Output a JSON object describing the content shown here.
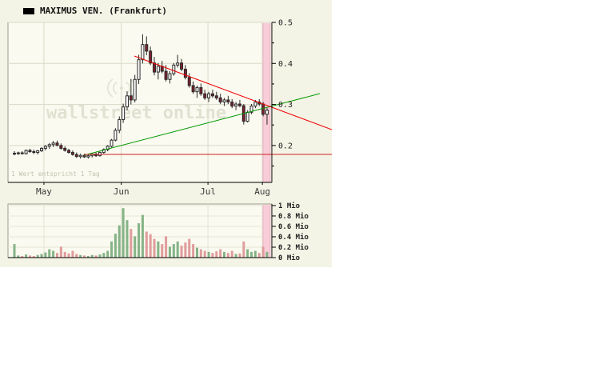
{
  "header": {
    "title": "MAXIMUS VEN. (Frankfurt)"
  },
  "watermark": {
    "text": "wallstreet online"
  },
  "annotation": "1 Wert entspricht 1 Tag",
  "chart_data": [
    {
      "type": "candlestick",
      "title": "MAXIMUS VEN. (Frankfurt)",
      "ylim": [
        0.11,
        0.5
      ],
      "y_ticks": [
        0.2,
        0.3,
        0.4,
        0.5
      ],
      "minor_ticks": [
        0.15,
        0.25,
        0.35,
        0.45
      ],
      "months": [
        {
          "label": "May",
          "i": 7.6
        },
        {
          "label": "Jun",
          "i": 27.5
        },
        {
          "label": "Jul",
          "i": 49.8
        },
        {
          "label": "Aug",
          "i": 63.8
        }
      ],
      "colors": {
        "up_fill": "#ffffff",
        "down_fill": "#7d1f2d",
        "stroke": "#2a2a2a",
        "wick": "#2a2a2a"
      },
      "highlight_band": {
        "x": 329,
        "width": 9,
        "color": "#f8ccd8",
        "edge": "#eab6c4"
      },
      "trendlines": [
        {
          "name": "green-uptrend-line",
          "color": "#009900",
          "from": [
            105,
            194
          ],
          "to": [
            400,
            117
          ]
        },
        {
          "name": "red-downtrend-line",
          "color": "#ee0000",
          "from": [
            168,
            70
          ],
          "to": [
            415,
            162
          ]
        },
        {
          "name": "red-support-line",
          "color": "#cc2222",
          "from": [
            105,
            193
          ],
          "to": [
            415,
            193
          ]
        }
      ],
      "candles": [
        [
          0.18,
          0.186,
          0.176,
          0.181
        ],
        [
          0.181,
          0.185,
          0.177,
          0.182
        ],
        [
          0.182,
          0.186,
          0.178,
          0.18
        ],
        [
          0.18,
          0.19,
          0.178,
          0.188
        ],
        [
          0.188,
          0.192,
          0.182,
          0.185
        ],
        [
          0.185,
          0.19,
          0.179,
          0.183
        ],
        [
          0.183,
          0.189,
          0.178,
          0.187
        ],
        [
          0.187,
          0.196,
          0.184,
          0.193
        ],
        [
          0.193,
          0.201,
          0.188,
          0.198
        ],
        [
          0.198,
          0.206,
          0.192,
          0.202
        ],
        [
          0.202,
          0.211,
          0.196,
          0.206
        ],
        [
          0.206,
          0.212,
          0.198,
          0.2
        ],
        [
          0.2,
          0.205,
          0.19,
          0.193
        ],
        [
          0.193,
          0.198,
          0.185,
          0.188
        ],
        [
          0.188,
          0.192,
          0.18,
          0.183
        ],
        [
          0.183,
          0.188,
          0.175,
          0.178
        ],
        [
          0.178,
          0.183,
          0.17,
          0.173
        ],
        [
          0.173,
          0.18,
          0.168,
          0.176
        ],
        [
          0.176,
          0.18,
          0.17,
          0.172
        ],
        [
          0.172,
          0.178,
          0.168,
          0.175
        ],
        [
          0.175,
          0.181,
          0.171,
          0.179
        ],
        [
          0.179,
          0.183,
          0.172,
          0.175
        ],
        [
          0.175,
          0.185,
          0.173,
          0.183
        ],
        [
          0.183,
          0.193,
          0.18,
          0.19
        ],
        [
          0.19,
          0.201,
          0.186,
          0.198
        ],
        [
          0.198,
          0.216,
          0.195,
          0.213
        ],
        [
          0.213,
          0.242,
          0.21,
          0.237
        ],
        [
          0.237,
          0.271,
          0.23,
          0.263
        ],
        [
          0.263,
          0.302,
          0.255,
          0.294
        ],
        [
          0.294,
          0.332,
          0.286,
          0.321
        ],
        [
          0.321,
          0.362,
          0.3,
          0.311
        ],
        [
          0.311,
          0.372,
          0.305,
          0.361
        ],
        [
          0.361,
          0.421,
          0.35,
          0.409
        ],
        [
          0.409,
          0.471,
          0.4,
          0.446
        ],
        [
          0.446,
          0.466,
          0.42,
          0.43
        ],
        [
          0.43,
          0.441,
          0.396,
          0.401
        ],
        [
          0.401,
          0.416,
          0.371,
          0.379
        ],
        [
          0.379,
          0.401,
          0.361,
          0.393
        ],
        [
          0.393,
          0.406,
          0.376,
          0.381
        ],
        [
          0.381,
          0.396,
          0.356,
          0.361
        ],
        [
          0.361,
          0.381,
          0.351,
          0.375
        ],
        [
          0.375,
          0.401,
          0.37,
          0.396
        ],
        [
          0.396,
          0.421,
          0.39,
          0.401
        ],
        [
          0.401,
          0.411,
          0.381,
          0.386
        ],
        [
          0.386,
          0.396,
          0.361,
          0.366
        ],
        [
          0.366,
          0.376,
          0.341,
          0.346
        ],
        [
          0.346,
          0.356,
          0.326,
          0.331
        ],
        [
          0.331,
          0.346,
          0.316,
          0.341
        ],
        [
          0.341,
          0.351,
          0.321,
          0.326
        ],
        [
          0.326,
          0.336,
          0.311,
          0.316
        ],
        [
          0.316,
          0.331,
          0.306,
          0.326
        ],
        [
          0.326,
          0.336,
          0.316,
          0.321
        ],
        [
          0.321,
          0.331,
          0.311,
          0.316
        ],
        [
          0.316,
          0.326,
          0.301,
          0.306
        ],
        [
          0.306,
          0.316,
          0.296,
          0.311
        ],
        [
          0.311,
          0.321,
          0.301,
          0.306
        ],
        [
          0.306,
          0.313,
          0.291,
          0.296
        ],
        [
          0.296,
          0.306,
          0.286,
          0.301
        ],
        [
          0.301,
          0.311,
          0.293,
          0.297
        ],
        [
          0.297,
          0.301,
          0.251,
          0.259
        ],
        [
          0.259,
          0.286,
          0.256,
          0.281
        ],
        [
          0.281,
          0.301,
          0.276,
          0.296
        ],
        [
          0.296,
          0.311,
          0.291,
          0.306
        ],
        [
          0.306,
          0.313,
          0.296,
          0.301
        ],
        [
          0.301,
          0.306,
          0.271,
          0.276
        ],
        [
          0.276,
          0.291,
          0.251,
          0.286
        ]
      ]
    },
    {
      "type": "bar",
      "ylabel_unit": "Mio",
      "ymax": 1.03,
      "y_ticks": [
        {
          "v": 0,
          "label": "0 Mio"
        },
        {
          "v": 0.2,
          "label": "0.2 Mio"
        },
        {
          "v": 0.4,
          "label": "0.4 Mio"
        },
        {
          "v": 0.6,
          "label": "0.6 Mio"
        },
        {
          "v": 0.8,
          "label": "0.8 Mio"
        },
        {
          "v": 1,
          "label": "1 Mio"
        }
      ],
      "colors": {
        "up": "#86b386",
        "down": "#e09c9c"
      },
      "values": [
        0.26,
        0.04,
        0.03,
        0.06,
        0.04,
        0.03,
        0.05,
        0.07,
        0.1,
        0.16,
        0.13,
        0.09,
        0.21,
        0.11,
        0.08,
        0.13,
        0.07,
        0.05,
        0.04,
        0.03,
        0.05,
        0.04,
        0.06,
        0.09,
        0.13,
        0.31,
        0.46,
        0.62,
        0.95,
        0.72,
        0.55,
        0.41,
        0.66,
        0.82,
        0.5,
        0.45,
        0.36,
        0.31,
        0.26,
        0.41,
        0.21,
        0.26,
        0.31,
        0.23,
        0.29,
        0.36,
        0.26,
        0.19,
        0.16,
        0.13,
        0.11,
        0.09,
        0.12,
        0.16,
        0.11,
        0.09,
        0.13,
        0.07,
        0.08,
        0.31,
        0.16,
        0.11,
        0.13,
        0.09,
        0.21,
        0.11
      ]
    }
  ]
}
